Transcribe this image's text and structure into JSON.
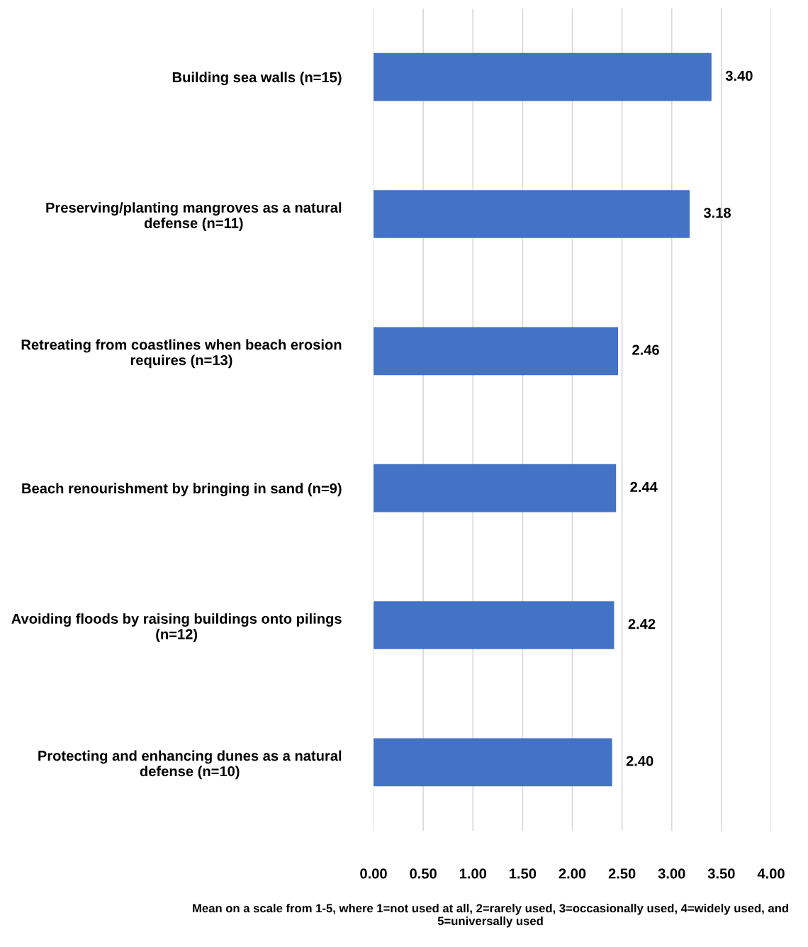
{
  "chart_data": {
    "type": "bar",
    "orientation": "horizontal",
    "categories": [
      "Building sea walls (n=15)",
      "Preserving/planting mangroves as a natural defense (n=11)",
      "Retreating from coastlines when beach erosion requires (n=13)",
      "Beach renourishment by bringing in sand (n=9)",
      "Avoiding floods by raising buildings onto pilings (n=12)",
      "Protecting and enhancing dunes as a natural defense (n=10)"
    ],
    "values": [
      3.4,
      3.18,
      2.46,
      2.44,
      2.42,
      2.4
    ],
    "value_labels": [
      "3.40",
      "3.18",
      "2.46",
      "2.44",
      "2.42",
      "2.40"
    ],
    "color": "#4472c4",
    "xlim": [
      0,
      4
    ],
    "xticks": [
      {
        "value": 0,
        "label": "0.00"
      },
      {
        "value": 0.5,
        "label": "0.50"
      },
      {
        "value": 1,
        "label": "1.00"
      },
      {
        "value": 1.5,
        "label": "1.50"
      },
      {
        "value": 2,
        "label": "2.00"
      },
      {
        "value": 2.5,
        "label": "2.50"
      },
      {
        "value": 3,
        "label": "3.00"
      },
      {
        "value": 3.5,
        "label": "3.50"
      },
      {
        "value": 4,
        "label": "4.00"
      }
    ],
    "xlabel": "Mean on a scale from 1-5, where 1=not used at all, 2=rarely used, 3=occasionally used, 4=widely used, and 5=universally used",
    "grid": "x",
    "legend": false
  }
}
